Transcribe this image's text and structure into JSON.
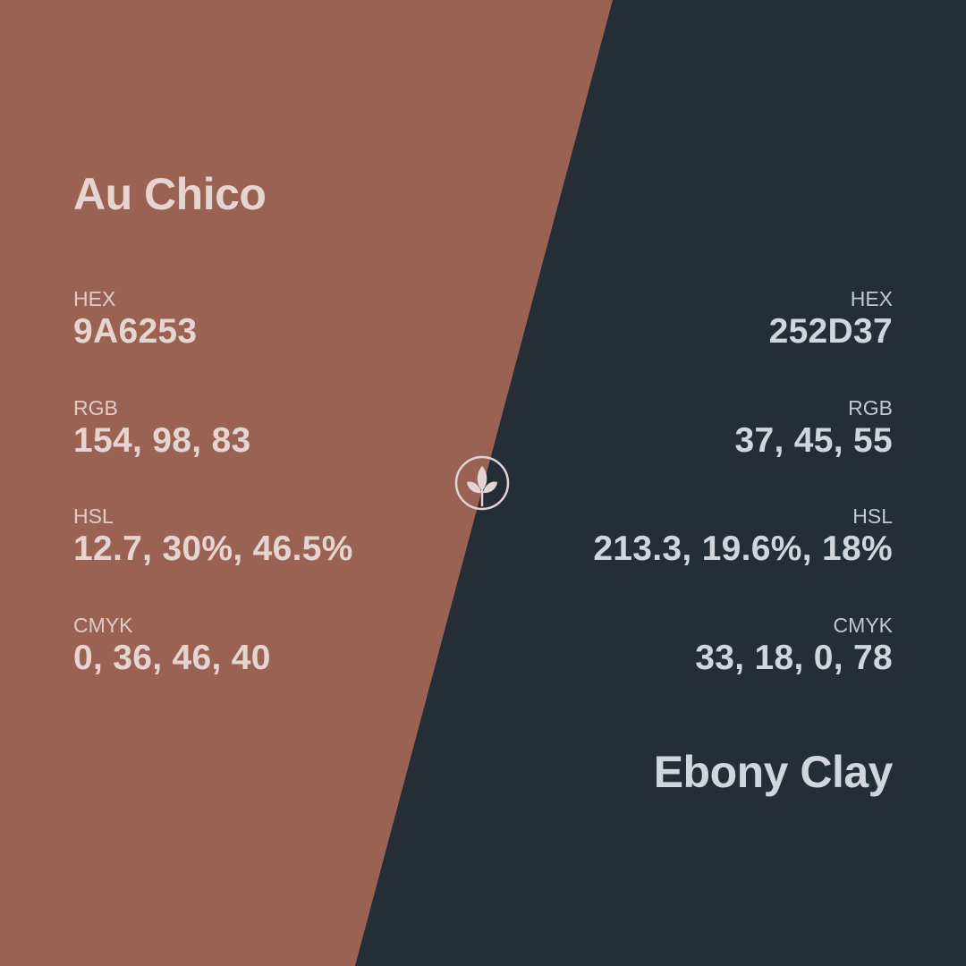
{
  "colors": {
    "left_bg": "#9A6253",
    "right_bg": "#252D37",
    "left_text": "#E6D4D0",
    "right_text": "#D2D5DA"
  },
  "left": {
    "name": "Au Chico",
    "hex_label": "HEX",
    "hex_value": "9A6253",
    "rgb_label": "RGB",
    "rgb_value": "154, 98, 83",
    "hsl_label": "HSL",
    "hsl_value": "12.7, 30%, 46.5%",
    "cmyk_label": "CMYK",
    "cmyk_value": "0, 36, 46, 40"
  },
  "right": {
    "name": "Ebony Clay",
    "hex_label": "HEX",
    "hex_value": "252D37",
    "rgb_label": "RGB",
    "rgb_value": "37, 45, 55",
    "hsl_label": "HSL",
    "hsl_value": "213.3, 19.6%, 18%",
    "cmyk_label": "CMYK",
    "cmyk_value": "33, 18, 0, 78"
  },
  "logo_icon": "leaf-sprout-icon"
}
